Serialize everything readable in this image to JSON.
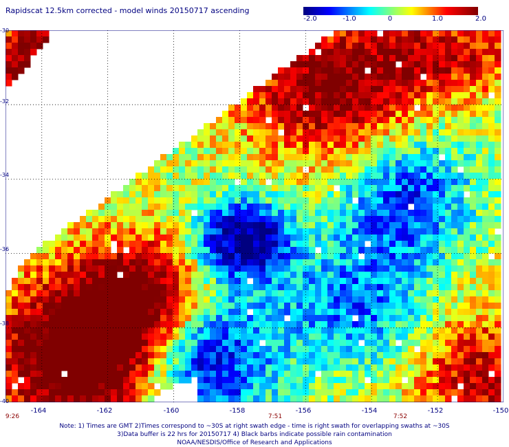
{
  "title": "Rapidscat 12.5km corrected - model winds 20150717 ascending",
  "colorbar": {
    "min": -2.0,
    "max": 2.0,
    "tick_labels": [
      "-2.0",
      "-1.0",
      "0",
      "1.0",
      "2.0"
    ],
    "tick_values": [
      -2.0,
      -1.0,
      0,
      1.0,
      2.0
    ],
    "colors": [
      "#000080",
      "#0000ff",
      "#00ffff",
      "#ffff00",
      "#ff0000",
      "#800000"
    ]
  },
  "map": {
    "lon_range": [
      -165.1,
      -150
    ],
    "lat_range": [
      -40,
      -30
    ],
    "lat_labels": [
      "-30",
      "-32",
      "-34",
      "-36",
      "-38",
      "-40"
    ],
    "lat_values": [
      -30,
      -32,
      -34,
      -36,
      -38,
      -40
    ],
    "lon_labels": [
      "-164",
      "-162",
      "-160",
      "-158",
      "-156",
      "-154",
      "-152",
      "-150"
    ],
    "lon_values": [
      -164,
      -162,
      -160,
      -158,
      -156,
      -154,
      -152,
      -150
    ],
    "grid": "dotted"
  },
  "times": [
    {
      "label": "9:26",
      "lon": -164.9
    },
    {
      "label": "7:51",
      "lon": -157.1
    },
    {
      "label": "7:52",
      "lon": -153.1
    }
  ],
  "notes": [
    "Note: 1) Times are GMT 2)Times correspond to ~30S at right swath edge - time is right swath for overlapping swaths at ~30S",
    "3)Data buffer is 22 hrs for 20150717 4) Black barbs indicate possible rain contamination",
    "NOAA/NESDIS/Office of Research and Applications"
  ]
}
